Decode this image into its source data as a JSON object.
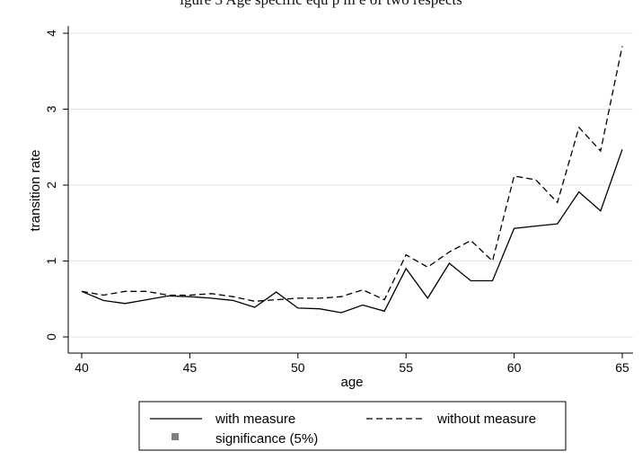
{
  "header_text": "igure 3 Age specific equ p m e of two respects",
  "chart_data": {
    "type": "line",
    "title": "",
    "xlabel": "age",
    "ylabel": "transition rate",
    "xlim": [
      40,
      65
    ],
    "ylim": [
      0,
      4
    ],
    "xticks": [
      40,
      45,
      50,
      55,
      60,
      65
    ],
    "yticks": [
      0,
      1,
      2,
      3,
      4
    ],
    "grid": "horizontal",
    "x": [
      40,
      41,
      42,
      43,
      44,
      45,
      46,
      47,
      48,
      49,
      50,
      51,
      52,
      53,
      54,
      55,
      56,
      57,
      58,
      59,
      60,
      61,
      62,
      63,
      64,
      65
    ],
    "series": [
      {
        "name": "with measure",
        "style": "solid",
        "color": "#000000",
        "values": [
          0.6,
          0.48,
          0.44,
          0.49,
          0.54,
          0.53,
          0.51,
          0.48,
          0.39,
          0.59,
          0.38,
          0.37,
          0.32,
          0.42,
          0.34,
          0.9,
          0.51,
          0.97,
          0.74,
          0.74,
          1.43,
          1.46,
          1.49,
          1.91,
          1.66,
          2.47
        ]
      },
      {
        "name": "without measure",
        "style": "dashed",
        "color": "#000000",
        "values": [
          0.6,
          0.55,
          0.6,
          0.6,
          0.55,
          0.55,
          0.57,
          0.53,
          0.47,
          0.49,
          0.51,
          0.51,
          0.53,
          0.62,
          0.49,
          1.08,
          0.92,
          1.12,
          1.27,
          1.0,
          2.12,
          2.07,
          1.77,
          2.76,
          2.45,
          3.83
        ]
      }
    ],
    "legend": {
      "position": "bottom",
      "entries": [
        {
          "label": "with measure",
          "style": "solid"
        },
        {
          "label": "without measure",
          "style": "dashed"
        },
        {
          "label": "significance (5%)",
          "style": "marker",
          "color": "#808080"
        }
      ]
    }
  }
}
